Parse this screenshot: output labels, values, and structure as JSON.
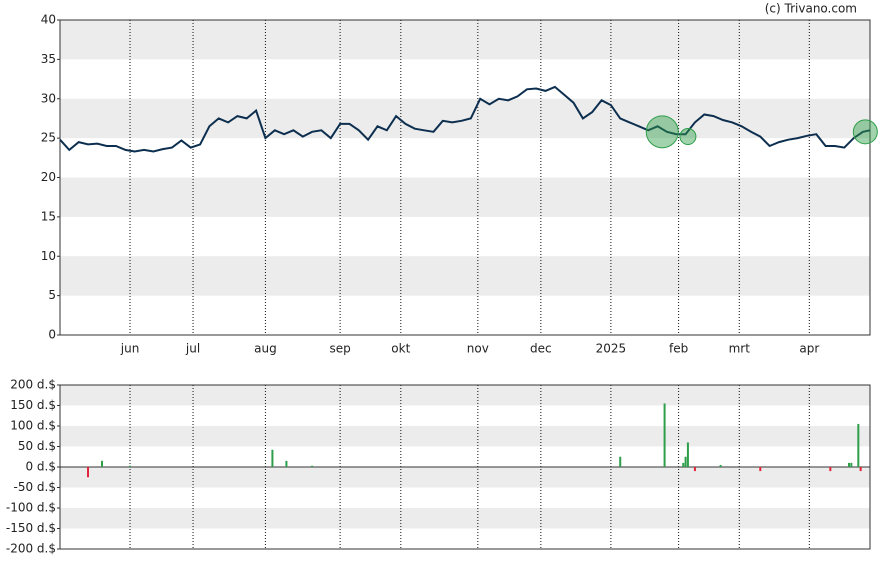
{
  "watermark": "(c) Trivano.com",
  "chart_data": [
    {
      "type": "line",
      "color": "#0d2f4f",
      "xlim": [
        0,
        347
      ],
      "xticks": [
        {
          "value": 30,
          "label": "jun"
        },
        {
          "value": 57,
          "label": "jul"
        },
        {
          "value": 88,
          "label": "aug"
        },
        {
          "value": 120,
          "label": "sep"
        },
        {
          "value": 146,
          "label": "okt"
        },
        {
          "value": 179,
          "label": "nov"
        },
        {
          "value": 206,
          "label": "dec"
        },
        {
          "value": 236,
          "label": "2025"
        },
        {
          "value": 265,
          "label": "feb"
        },
        {
          "value": 291,
          "label": "mrt"
        },
        {
          "value": 321,
          "label": "apr"
        }
      ],
      "ylim": [
        0,
        40
      ],
      "yticks": [
        0,
        5,
        10,
        15,
        20,
        25,
        30,
        35,
        40
      ],
      "x": [
        0,
        4,
        8,
        12,
        16,
        20,
        24,
        28,
        32,
        36,
        40,
        44,
        48,
        52,
        56,
        60,
        64,
        68,
        72,
        76,
        80,
        84,
        88,
        92,
        96,
        100,
        104,
        108,
        112,
        116,
        120,
        124,
        128,
        132,
        136,
        140,
        144,
        148,
        152,
        156,
        160,
        164,
        168,
        172,
        176,
        180,
        184,
        188,
        192,
        196,
        200,
        204,
        208,
        212,
        216,
        220,
        224,
        228,
        232,
        236,
        240,
        244,
        248,
        252,
        256,
        260,
        264,
        268,
        272,
        276,
        280,
        284,
        288,
        292,
        296,
        300,
        304,
        308,
        312,
        316,
        320,
        324,
        328,
        332,
        336,
        340,
        344,
        347
      ],
      "values": [
        24.8,
        23.5,
        24.5,
        24.2,
        24.3,
        24.0,
        24.0,
        23.5,
        23.3,
        23.5,
        23.3,
        23.6,
        23.8,
        24.7,
        23.8,
        24.2,
        26.5,
        27.5,
        27.0,
        27.8,
        27.5,
        28.5,
        25.0,
        26.0,
        25.5,
        26.0,
        25.2,
        25.8,
        26.0,
        25.0,
        26.8,
        26.8,
        26.0,
        24.8,
        26.5,
        26.0,
        27.8,
        26.8,
        26.2,
        26.0,
        25.8,
        27.2,
        27.0,
        27.2,
        27.5,
        30.0,
        29.3,
        30.0,
        29.8,
        30.3,
        31.2,
        31.3,
        31.0,
        31.5,
        30.5,
        29.5,
        27.5,
        28.3,
        29.8,
        29.2,
        27.5,
        27.0,
        26.5,
        26.0,
        26.5,
        25.8,
        25.5,
        25.5,
        27.0,
        28.0,
        27.8,
        27.3,
        27.0,
        26.5,
        25.8,
        25.2,
        24.0,
        24.5,
        24.8,
        25.0,
        25.3,
        25.5,
        24.0,
        24.0,
        23.8,
        25.0,
        25.8,
        26.0
      ],
      "bubbles": {
        "color": "#2e9e4a",
        "x": [
          258,
          269,
          345
        ],
        "values": [
          25.8,
          25.2,
          25.8
        ],
        "sizes": [
          3,
          1,
          2
        ]
      }
    },
    {
      "type": "bar",
      "color": "#2e9e4a",
      "negative_color": "#e0253a",
      "xlim": [
        0,
        347
      ],
      "xticks": [
        30,
        57,
        88,
        120,
        146,
        179,
        206,
        236,
        265,
        291,
        321
      ],
      "ylim": [
        -200,
        200
      ],
      "yticks": [
        {
          "value": -200,
          "label": "-200 d.$"
        },
        {
          "value": -150,
          "label": "-150 d.$"
        },
        {
          "value": -100,
          "label": "-100 d.$"
        },
        {
          "value": -50,
          "label": "-50 d.$"
        },
        {
          "value": 0,
          "label": "0 d.$"
        },
        {
          "value": 50,
          "label": "50 d.$"
        },
        {
          "value": 100,
          "label": "100 d.$"
        },
        {
          "value": 150,
          "label": "150 d.$"
        },
        {
          "value": 200,
          "label": "200 d.$"
        }
      ],
      "x": [
        12,
        18,
        30,
        91,
        97,
        108,
        240,
        259,
        267,
        268,
        269,
        272,
        283,
        300,
        330,
        338,
        339,
        342,
        343
      ],
      "values": [
        -25,
        15,
        3,
        42,
        15,
        3,
        25,
        155,
        10,
        25,
        60,
        -10,
        5,
        -10,
        -10,
        10,
        10,
        105,
        -10
      ]
    }
  ]
}
